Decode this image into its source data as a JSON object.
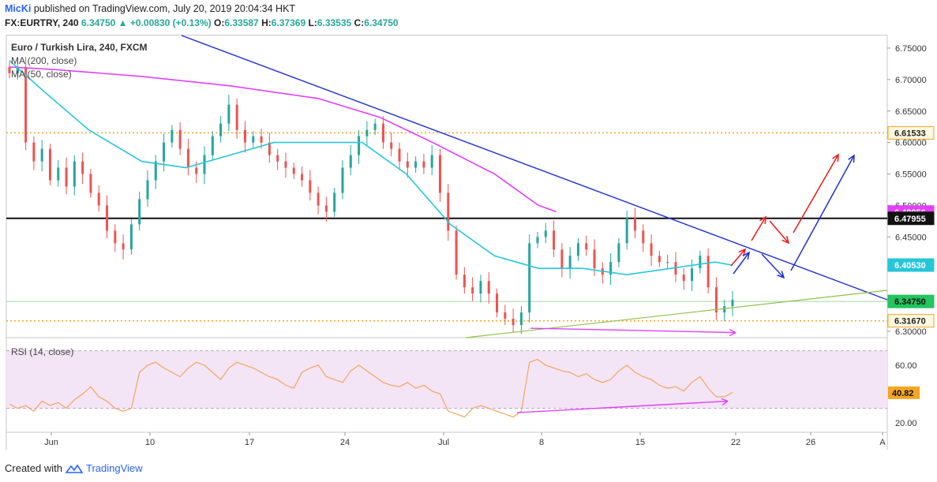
{
  "header": {
    "published_by": "MicKi",
    "published_text": " published on TradingView.com, July 20, 2019 20:04:34 HKT",
    "symbol": "FX:EURTRY, 240",
    "last": "6.34750",
    "change": "+0.00830 (+0.13%)",
    "open_label": "O:",
    "open": "6.33587",
    "high_label": "H:",
    "high": "6.37369",
    "low_label": "L:",
    "low": "6.33535",
    "close_label": "C:",
    "close": "6.34750"
  },
  "legend": {
    "title": "Euro / Turkish Lira, 240, FXCM",
    "ma200": "MA (200, close)",
    "ma50": "MA (50, close)",
    "rsi": "RSI (14, close)"
  },
  "footer": {
    "created_with": "Created with",
    "brand": "TradingView"
  },
  "colors": {
    "up": "#26a69a",
    "down": "#ef5350",
    "ma200": "#e040fb",
    "ma50": "#26c6da",
    "trend": "#1e2fd0",
    "green_trend": "#8bc34a",
    "dotted": "#f5a623",
    "rsi_line": "#f4a460",
    "rsi_band": "#f3e5f5",
    "arrow_red": "#f01818",
    "arrow_blue": "#1e2fd0"
  },
  "chart_data": {
    "type": "candlestick",
    "x_labels": [
      "Jun",
      "10",
      "17",
      "24",
      "Jul",
      "8",
      "15",
      "22",
      "26",
      "A"
    ],
    "y_ticks": [
      "6.75000",
      "6.70000",
      "6.65000",
      "6.60000",
      "6.55000",
      "6.50000",
      "6.45000",
      "6.40000",
      "6.35000",
      "6.30000"
    ],
    "ylim": [
      6.29,
      6.77
    ],
    "price_labels": [
      {
        "value": "6.61533",
        "style": "dotted"
      },
      {
        "value": "6.48956",
        "style": "ma200"
      },
      {
        "value": "6.47955",
        "style": "line"
      },
      {
        "value": "6.40530",
        "style": "ma50"
      },
      {
        "value": "6.34750",
        "style": "last"
      },
      {
        "value": "6.31670",
        "style": "dotted"
      }
    ],
    "levels": {
      "resistance_dotted": 6.61533,
      "horizontal": 6.47955,
      "support_dotted": 6.3167
    },
    "close_path": [
      6.71,
      6.72,
      6.6,
      6.57,
      6.59,
      6.54,
      6.56,
      6.53,
      6.57,
      6.55,
      6.52,
      6.5,
      6.46,
      6.44,
      6.43,
      6.47,
      6.51,
      6.54,
      6.57,
      6.6,
      6.62,
      6.59,
      6.56,
      6.55,
      6.58,
      6.61,
      6.63,
      6.66,
      6.62,
      6.6,
      6.61,
      6.6,
      6.58,
      6.57,
      6.56,
      6.55,
      6.54,
      6.52,
      6.5,
      6.49,
      6.52,
      6.56,
      6.58,
      6.61,
      6.62,
      6.63,
      6.6,
      6.59,
      6.57,
      6.56,
      6.57,
      6.56,
      6.58,
      6.52,
      6.46,
      6.39,
      6.37,
      6.36,
      6.38,
      6.36,
      6.33,
      6.32,
      6.31,
      6.33,
      6.44,
      6.45,
      6.46,
      6.43,
      6.4,
      6.42,
      6.44,
      6.43,
      6.4,
      6.39,
      6.41,
      6.44,
      6.48,
      6.46,
      6.44,
      6.42,
      6.41,
      6.41,
      6.39,
      6.38,
      6.4,
      6.42,
      6.37,
      6.33,
      6.34,
      6.35
    ],
    "ma200_points": [
      [
        6.72,
        0
      ],
      [
        6.716,
        0.05
      ],
      [
        6.705,
        0.15
      ],
      [
        6.69,
        0.25
      ],
      [
        6.67,
        0.35
      ],
      [
        6.64,
        0.42
      ],
      [
        6.6,
        0.48
      ],
      [
        6.55,
        0.55
      ],
      [
        6.5,
        0.6
      ],
      [
        6.49,
        0.62
      ]
    ],
    "ma50_points": [
      [
        6.73,
        0
      ],
      [
        6.68,
        0.04
      ],
      [
        6.62,
        0.09
      ],
      [
        6.57,
        0.15
      ],
      [
        6.56,
        0.2
      ],
      [
        6.58,
        0.25
      ],
      [
        6.6,
        0.3
      ],
      [
        6.6,
        0.4
      ],
      [
        6.55,
        0.45
      ],
      [
        6.47,
        0.5
      ],
      [
        6.42,
        0.55
      ],
      [
        6.4,
        0.6
      ],
      [
        6.4,
        0.65
      ],
      [
        6.39,
        0.7
      ],
      [
        6.4,
        0.75
      ],
      [
        6.41,
        0.8
      ],
      [
        6.405,
        0.82
      ]
    ],
    "rsi": {
      "ylim": [
        15,
        78
      ],
      "ticks": [
        "60.00",
        "40.82",
        "20.00"
      ],
      "band": [
        30,
        70
      ],
      "current": "40.82",
      "values": [
        33,
        30,
        32,
        28,
        35,
        32,
        34,
        30,
        36,
        40,
        45,
        38,
        35,
        30,
        28,
        30,
        55,
        60,
        62,
        58,
        55,
        52,
        58,
        62,
        60,
        55,
        50,
        58,
        62,
        60,
        58,
        55,
        52,
        50,
        46,
        44,
        55,
        58,
        60,
        52,
        50,
        48,
        56,
        60,
        56,
        52,
        48,
        46,
        45,
        48,
        44,
        46,
        42,
        40,
        28,
        26,
        24,
        30,
        32,
        30,
        28,
        26,
        24,
        28,
        62,
        64,
        60,
        58,
        56,
        55,
        52,
        54,
        50,
        48,
        50,
        56,
        60,
        55,
        52,
        50,
        46,
        44,
        45,
        42,
        48,
        52,
        44,
        38,
        38,
        41
      ]
    }
  }
}
